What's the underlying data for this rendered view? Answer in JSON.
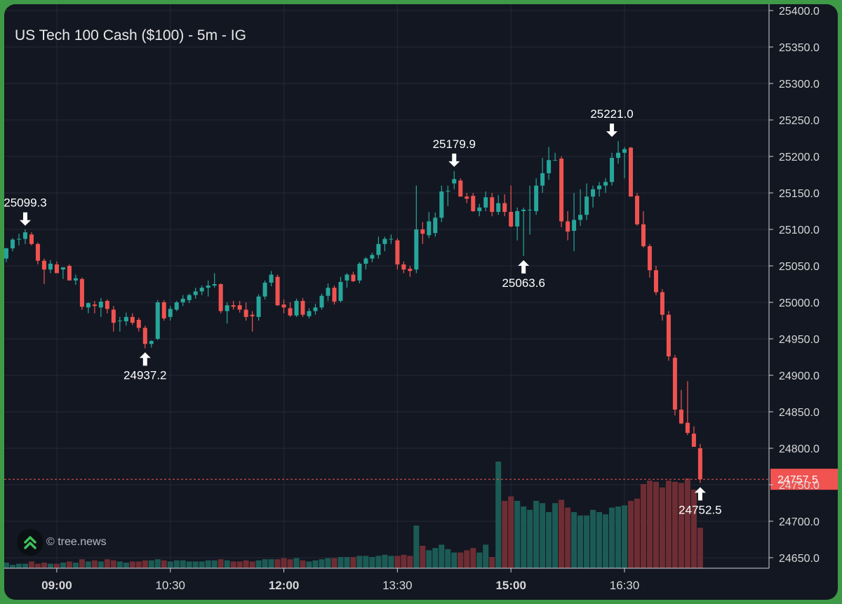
{
  "chart_data": {
    "type": "candlestick",
    "title": "US Tech 100 Cash ($100) - 5m - IG",
    "x_ticks": [
      {
        "label": "09:00",
        "bar": 8,
        "bold": true
      },
      {
        "label": "10:30",
        "bar": 26,
        "bold": false
      },
      {
        "label": "12:00",
        "bar": 44,
        "bold": true
      },
      {
        "label": "13:30",
        "bar": 62,
        "bold": false
      },
      {
        "label": "15:00",
        "bar": 80,
        "bold": true
      },
      {
        "label": "16:30",
        "bar": 98,
        "bold": false
      }
    ],
    "y_ticks": [
      "25400.0",
      "25350.0",
      "25300.0",
      "25250.0",
      "25200.0",
      "25150.0",
      "25100.0",
      "25050.0",
      "25000.0",
      "24950.0",
      "24900.0",
      "24850.0",
      "24800.0",
      "24750.0",
      "24700.0",
      "24650.0"
    ],
    "ylim": [
      24650,
      25400
    ],
    "current_price": "24757.5",
    "candles": [
      [
        25060,
        25075,
        25055,
        25074
      ],
      [
        25074,
        25088,
        25070,
        25086
      ],
      [
        25086,
        25094,
        25078,
        25087
      ],
      [
        25087,
        25100,
        25080,
        25096
      ],
      [
        25093,
        25096,
        25078,
        25080
      ],
      [
        25080,
        25082,
        25052,
        25057
      ],
      [
        25057,
        25060,
        25025,
        25045
      ],
      [
        25045,
        25058,
        25040,
        25053
      ],
      [
        25052,
        25056,
        25040,
        25040
      ],
      [
        25045,
        25048,
        25032,
        25048
      ],
      [
        25050,
        25052,
        25030,
        25030
      ],
      [
        25030,
        25038,
        25024,
        25033
      ],
      [
        25032,
        25034,
        24990,
        24994
      ],
      [
        24993,
        25000,
        24985,
        24999
      ],
      [
        24997,
        25002,
        24985,
        24995
      ],
      [
        24993,
        25006,
        24980,
        25001
      ],
      [
        25002,
        25004,
        24985,
        24991
      ],
      [
        24990,
        24995,
        24960,
        24972
      ],
      [
        24975,
        24980,
        24960,
        24975
      ],
      [
        24974,
        24986,
        24968,
        24980
      ],
      [
        24980,
        24985,
        24969,
        24972
      ],
      [
        24976,
        24979,
        24960,
        24965
      ],
      [
        24965,
        24968,
        24937,
        24943
      ],
      [
        24943,
        24948,
        24938,
        24947
      ],
      [
        24950,
        25003,
        24948,
        25000
      ],
      [
        25000,
        25003,
        24975,
        24978
      ],
      [
        24980,
        24995,
        24975,
        24991
      ],
      [
        24990,
        25002,
        24988,
        25000
      ],
      [
        25000,
        25010,
        24995,
        25005
      ],
      [
        25003,
        25012,
        24999,
        25010
      ],
      [
        25010,
        25020,
        25005,
        25015
      ],
      [
        25015,
        25023,
        25010,
        25020
      ],
      [
        25020,
        25030,
        25008,
        25023
      ],
      [
        25023,
        25040,
        25020,
        25025
      ],
      [
        25025,
        25026,
        24985,
        24988
      ],
      [
        24988,
        25000,
        24971,
        24996
      ],
      [
        24996,
        25002,
        24990,
        24994
      ],
      [
        24996,
        25002,
        24986,
        24990
      ],
      [
        24990,
        25000,
        24975,
        24980
      ],
      [
        24983,
        24988,
        24960,
        24981
      ],
      [
        24980,
        25011,
        24975,
        25008
      ],
      [
        25008,
        25030,
        25004,
        25027
      ],
      [
        25027,
        25043,
        25022,
        25038
      ],
      [
        25035,
        25038,
        24995,
        24996
      ],
      [
        24997,
        25004,
        24985,
        24993
      ],
      [
        24992,
        25000,
        24980,
        24982
      ],
      [
        24982,
        25005,
        24980,
        25002
      ],
      [
        25002,
        25006,
        24980,
        24983
      ],
      [
        24981,
        24992,
        24978,
        24988
      ],
      [
        24988,
        24998,
        24983,
        24993
      ],
      [
        24993,
        25012,
        24990,
        25009
      ],
      [
        25009,
        25026,
        25002,
        25020
      ],
      [
        25020,
        25023,
        24997,
        25001
      ],
      [
        25002,
        25035,
        25000,
        25028
      ],
      [
        25030,
        25040,
        25020,
        25038
      ],
      [
        25038,
        25042,
        25028,
        25029
      ],
      [
        25030,
        25055,
        25026,
        25053
      ],
      [
        25053,
        25062,
        25045,
        25060
      ],
      [
        25060,
        25068,
        25055,
        25065
      ],
      [
        25065,
        25090,
        25060,
        25080
      ],
      [
        25080,
        25090,
        25070,
        25087
      ],
      [
        25087,
        25093,
        25080,
        25087
      ],
      [
        25085,
        25088,
        25045,
        25052
      ],
      [
        25052,
        25056,
        25040,
        25045
      ],
      [
        25046,
        25050,
        25035,
        25043
      ],
      [
        25045,
        25160,
        25040,
        25100
      ],
      [
        25100,
        25110,
        25080,
        25094
      ],
      [
        25092,
        25124,
        25088,
        25111
      ],
      [
        25095,
        25123,
        25090,
        25116
      ],
      [
        25116,
        25160,
        25110,
        25152
      ],
      [
        25152,
        25160,
        25132,
        25153
      ],
      [
        25163,
        25179.9,
        25155,
        25169
      ],
      [
        25167,
        25170,
        25145,
        25145
      ],
      [
        25145,
        25150,
        25136,
        25142
      ],
      [
        25146,
        25150,
        25124,
        25125
      ],
      [
        25125,
        25135,
        25118,
        25130
      ],
      [
        25130,
        25152,
        25125,
        25144
      ],
      [
        25144,
        25150,
        25118,
        25124
      ],
      [
        25124,
        25147,
        25120,
        25136
      ],
      [
        25136,
        25148,
        25118,
        25124
      ],
      [
        25124,
        25160,
        25103,
        25104
      ],
      [
        25104,
        25130,
        25085,
        25125
      ],
      [
        25125,
        25130,
        25063.6,
        25127
      ],
      [
        25127,
        25160,
        25093,
        25127
      ],
      [
        25125,
        25170,
        25120,
        25160
      ],
      [
        25160,
        25198,
        25150,
        25177
      ],
      [
        25177,
        25213,
        25168,
        25195
      ],
      [
        25195,
        25205,
        25195,
        25195
      ],
      [
        25197,
        25200,
        25103,
        25111
      ],
      [
        25111,
        25125,
        25085,
        25097
      ],
      [
        25098,
        25150,
        25070,
        25113
      ],
      [
        25113,
        25155,
        25105,
        25120
      ],
      [
        25120,
        25163,
        25113,
        25145
      ],
      [
        25145,
        25160,
        25130,
        25155
      ],
      [
        25155,
        25165,
        25145,
        25160
      ],
      [
        25160,
        25170,
        25150,
        25165
      ],
      [
        25165,
        25205,
        25160,
        25198
      ],
      [
        25198,
        25221,
        25190,
        25205
      ],
      [
        25205,
        25213,
        25170,
        25210
      ],
      [
        25212,
        25213,
        25145,
        25145
      ],
      [
        25146,
        25150,
        25105,
        25107
      ],
      [
        25107,
        25125,
        25075,
        25077
      ],
      [
        25077,
        25080,
        25034,
        25044
      ],
      [
        25044,
        25050,
        25010,
        25014
      ],
      [
        25014,
        25018,
        24975,
        24983
      ],
      [
        24983,
        24988,
        24920,
        24926
      ],
      [
        24924,
        24928,
        24845,
        24853
      ],
      [
        24853,
        24880,
        24833,
        24834
      ],
      [
        24835,
        24892,
        24818,
        24821
      ],
      [
        24820,
        24830,
        24802,
        24802
      ],
      [
        24800,
        24806,
        24752.5,
        24757.5
      ]
    ],
    "volume_colors": [
      "#1c5b55",
      "#6e2d33"
    ],
    "volume_max": 100,
    "volume": [
      5,
      3,
      4,
      4,
      6,
      4,
      5,
      4,
      4,
      5,
      6,
      5,
      8,
      6,
      7,
      6,
      8,
      7,
      6,
      5,
      6,
      6,
      7,
      7,
      8,
      7,
      6,
      7,
      7,
      6,
      6,
      6,
      7,
      7,
      8,
      7,
      6,
      6,
      7,
      6,
      7,
      8,
      8,
      8,
      9,
      8,
      9,
      7,
      6,
      7,
      8,
      9,
      9,
      10,
      10,
      10,
      11,
      11,
      10,
      11,
      12,
      11,
      11,
      12,
      11,
      38,
      20,
      16,
      18,
      21,
      17,
      14,
      14,
      16,
      18,
      14,
      21,
      10,
      95,
      60,
      64,
      60,
      55,
      52,
      60,
      58,
      50,
      58,
      61,
      54,
      50,
      47,
      47,
      52,
      50,
      48,
      54,
      55,
      56,
      60,
      62,
      75,
      78,
      77,
      72,
      78,
      77,
      76,
      80,
      70,
      36
    ],
    "price_labels": [
      {
        "text": "25099.3",
        "bar": 3,
        "direction": "down"
      },
      {
        "text": "24937.2",
        "bar": 22,
        "direction": "up"
      },
      {
        "text": "25179.9",
        "bar": 71,
        "direction": "down"
      },
      {
        "text": "25063.6",
        "bar": 82,
        "direction": "up"
      },
      {
        "text": "25221.0",
        "bar": 96,
        "direction": "down"
      },
      {
        "text": "24752.5",
        "bar": 110,
        "direction": "up"
      }
    ]
  },
  "colors": {
    "up": "#26a69a",
    "down": "#ef5350",
    "grid": "#242937",
    "background": "#131722",
    "axis_text": "#d8d8d8",
    "price_tag": "#f05350"
  },
  "watermark": {
    "text": "© tree.news",
    "icon": "double-chevron-up-icon"
  }
}
